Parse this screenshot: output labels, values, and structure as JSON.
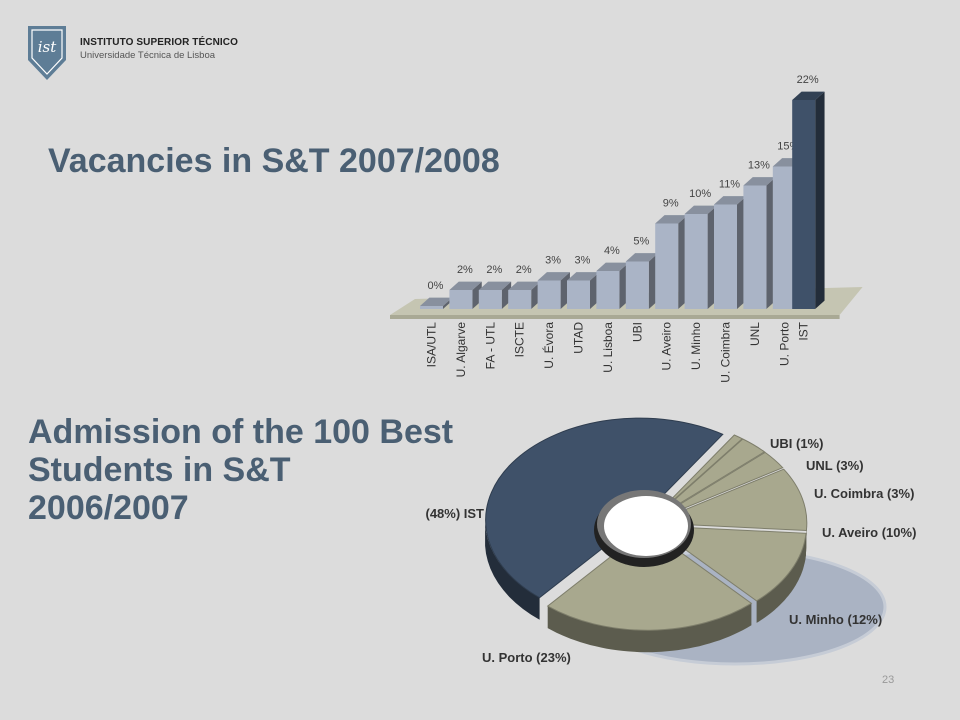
{
  "header": {
    "institution": "INSTITUTO SUPERIOR TÉCNICO",
    "subtitle": "Universidade Técnica de Lisboa",
    "logo_text": "ist"
  },
  "page_number": "23",
  "chart_data": [
    {
      "type": "bar",
      "title": "Vacancies in S&T 2007/2008",
      "categories": [
        "ISA/UTL",
        "U. Algarve",
        "FA - UTL",
        "ISCTE",
        "U. Évora",
        "UTAD",
        "U. Lisboa",
        "UBI",
        "U. Aveiro",
        "U. Minho",
        "U. Coimbra",
        "UNL",
        "U. Porto",
        "IST"
      ],
      "values": [
        0,
        2,
        2,
        2,
        3,
        3,
        4,
        5,
        9,
        10,
        11,
        13,
        15,
        22
      ],
      "value_labels": [
        "0%",
        "2%",
        "2%",
        "2%",
        "3%",
        "3%",
        "4%",
        "5%",
        "9%",
        "10%",
        "11%",
        "13%",
        "15%",
        "22%"
      ],
      "colors": {
        "default": "#aab4c6",
        "highlight": "#3f5169"
      },
      "highlight": "IST"
    },
    {
      "type": "pie",
      "style": "3d-donut",
      "title": "Admission of the 100 Best\nStudents in S&T\n2006/2007",
      "slices": [
        {
          "label": "UBI (1%)",
          "value": 1
        },
        {
          "label": "UNL (3%)",
          "value": 3
        },
        {
          "label": "U. Coimbra (3%)",
          "value": 3
        },
        {
          "label": "U. Aveiro (10%)",
          "value": 10
        },
        {
          "label": "U. Minho (12%)",
          "value": 12
        },
        {
          "label": "U. Porto (23%)",
          "value": 23
        },
        {
          "label": "(48%) IST",
          "value": 48
        }
      ],
      "colors": {
        "default": "#a8a88e",
        "highlight": "#3f5169"
      },
      "highlight": "(48%) IST"
    }
  ]
}
